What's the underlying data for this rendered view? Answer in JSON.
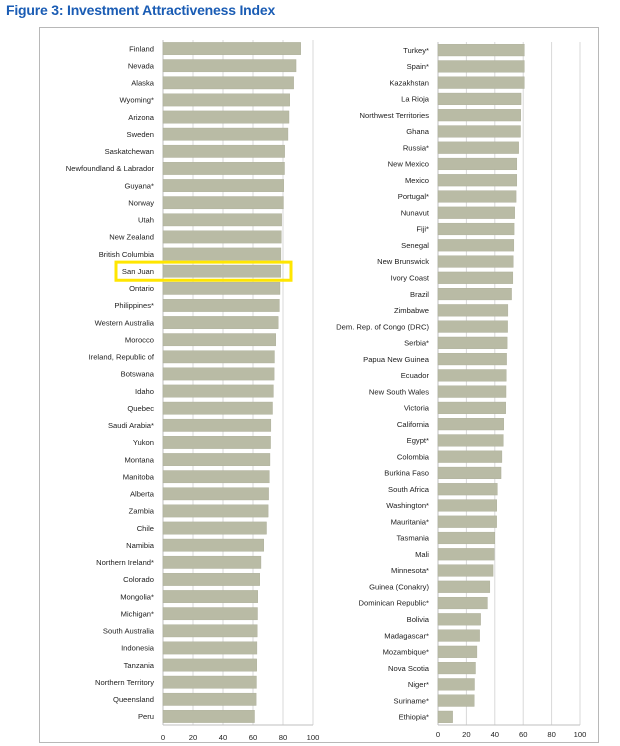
{
  "figure": {
    "title": "Figure 3: Investment Attractiveness Index"
  },
  "colors": {
    "bar": "#b9bba5",
    "bar_edge": "#a8aa94",
    "grid": "#d9d9d9",
    "title": "#1a5cb4",
    "highlight": "#ffe600"
  },
  "chart_data": [
    {
      "type": "bar",
      "orientation": "horizontal",
      "xlim": [
        0,
        100
      ],
      "xticks": [
        "0",
        "20",
        "40",
        "60",
        "80",
        "100"
      ],
      "grid": true,
      "highlight": "San Juan",
      "categories": [
        "Finland",
        "Nevada",
        "Alaska",
        "Wyoming*",
        "Arizona",
        "Sweden",
        "Saskatchewan",
        "Newfoundland & Labrador",
        "Guyana*",
        "Norway",
        "Utah",
        "New Zealand",
        "British Columbia",
        "San Juan",
        "Ontario",
        "Philippines*",
        "Western Australia",
        "Morocco",
        "Ireland, Republic of",
        "Botswana",
        "Idaho",
        "Quebec",
        "Saudi Arabia*",
        "Yukon",
        "Montana",
        "Manitoba",
        "Alberta",
        "Zambia",
        "Chile",
        "Namibia",
        "Northern Ireland*",
        "Colorado",
        "Mongolia*",
        "Michigan*",
        "South Australia",
        "Indonesia",
        "Tanzania",
        "Northern Territory",
        "Queensland",
        "Peru"
      ],
      "values": [
        91.8,
        88.7,
        87.1,
        84.5,
        84.0,
        83.3,
        81.1,
        81.0,
        80.5,
        80.3,
        79.1,
        78.9,
        78.6,
        78.5,
        78.0,
        77.6,
        76.8,
        75.2,
        74.3,
        74.1,
        73.6,
        73.0,
        71.9,
        71.7,
        71.3,
        70.9,
        70.4,
        70.1,
        69.0,
        67.2,
        65.3,
        64.5,
        63.2,
        63.0,
        62.8,
        62.6,
        62.5,
        62.3,
        62.1,
        61.0
      ]
    },
    {
      "type": "bar",
      "orientation": "horizontal",
      "xlim": [
        0,
        100
      ],
      "xticks": [
        "0",
        "20",
        "40",
        "60",
        "80",
        "100"
      ],
      "grid": true,
      "categories": [
        "Turkey*",
        "Spain*",
        "Kazakhstan",
        "La Rioja",
        "Northwest Territories",
        "Ghana",
        "Russia*",
        "New Mexico",
        "Mexico",
        "Portugal*",
        "Nunavut",
        "Fiji*",
        "Senegal",
        "New Brunswick",
        "Ivory Coast",
        "Brazil",
        "Zimbabwe",
        "Dem. Rep. of Congo (DRC)",
        "Serbia*",
        "Papua New Guinea",
        "Ecuador",
        "New South Wales",
        "Victoria",
        "California",
        "Egypt*",
        "Colombia",
        "Burkina Faso",
        "South Africa",
        "Washington*",
        "Mauritania*",
        "Tasmania",
        "Mali",
        "Minnesota*",
        "Guinea (Conakry)",
        "Dominican Republic*",
        "Bolivia",
        "Madagascar*",
        "Mozambique*",
        "Nova Scotia",
        "Niger*",
        "Suriname*",
        "Ethiopia*"
      ],
      "values": [
        60.8,
        60.8,
        60.8,
        58.5,
        58.3,
        58.1,
        56.8,
        55.5,
        55.5,
        55.0,
        54.0,
        53.6,
        53.4,
        53.0,
        52.7,
        51.8,
        49.2,
        49.0,
        48.7,
        48.3,
        48.1,
        47.9,
        47.7,
        46.3,
        46.0,
        45.0,
        44.4,
        41.8,
        41.4,
        41.3,
        40.0,
        39.6,
        38.8,
        36.5,
        34.8,
        30.0,
        29.3,
        27.4,
        26.4,
        25.7,
        25.5,
        10.3
      ]
    }
  ]
}
